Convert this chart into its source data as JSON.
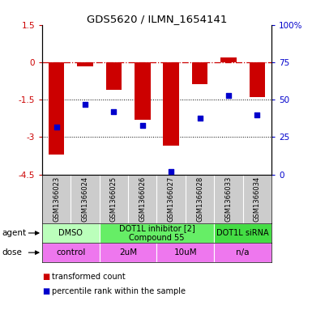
{
  "title": "GDS5620 / ILMN_1654141",
  "samples": [
    "GSM1366023",
    "GSM1366024",
    "GSM1366025",
    "GSM1366026",
    "GSM1366027",
    "GSM1366028",
    "GSM1366033",
    "GSM1366034"
  ],
  "bar_values": [
    -3.7,
    -0.15,
    -1.1,
    -2.3,
    -3.35,
    -0.85,
    0.2,
    -1.4
  ],
  "dot_values": [
    32,
    47,
    42,
    33,
    2,
    38,
    53,
    40
  ],
  "ylim_left": [
    -4.5,
    1.5
  ],
  "ylim_right": [
    0,
    100
  ],
  "yticks_left": [
    1.5,
    0,
    -1.5,
    -3,
    -4.5
  ],
  "yticks_right": [
    100,
    75,
    50,
    25,
    0
  ],
  "ytick_labels_left": [
    "1.5",
    "0",
    "-1.5",
    "-3",
    "-4.5"
  ],
  "ytick_labels_right": [
    "100%",
    "75",
    "50",
    "25",
    "0"
  ],
  "hlines_dotted": [
    -1.5,
    -3
  ],
  "hline_dashed": 0,
  "bar_color": "#cc0000",
  "dot_color": "#0000cc",
  "agent_groups": [
    {
      "label": "DMSO",
      "start": 0,
      "end": 2,
      "color": "#bbffbb"
    },
    {
      "label": "DOT1L inhibitor [2]\nCompound 55",
      "start": 2,
      "end": 6,
      "color": "#66ee66"
    },
    {
      "label": "DOT1L siRNA",
      "start": 6,
      "end": 8,
      "color": "#44dd44"
    }
  ],
  "dose_groups": [
    {
      "label": "control",
      "start": 0,
      "end": 2,
      "color": "#ee77ee"
    },
    {
      "label": "2uM",
      "start": 2,
      "end": 4,
      "color": "#ee77ee"
    },
    {
      "label": "10uM",
      "start": 4,
      "end": 6,
      "color": "#ee77ee"
    },
    {
      "label": "n/a",
      "start": 6,
      "end": 8,
      "color": "#ee77ee"
    }
  ],
  "legend_items": [
    {
      "label": "transformed count",
      "color": "#cc0000"
    },
    {
      "label": "percentile rank within the sample",
      "color": "#0000cc"
    }
  ],
  "left_axis_color": "#cc0000",
  "right_axis_color": "#0000cc",
  "tick_label_fontsize": 7.5,
  "bar_width": 0.55,
  "dot_size": 22,
  "sample_bg": "#cccccc",
  "sample_fontsize": 6.0,
  "group_fontsize": 7.5,
  "legend_fontsize": 7.0,
  "arrow_label_fontsize": 7.5
}
